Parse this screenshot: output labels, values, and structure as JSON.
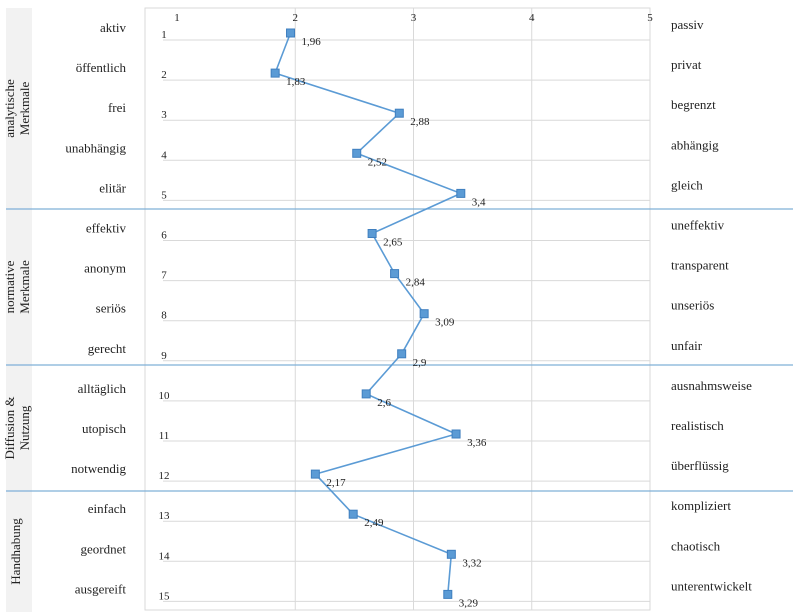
{
  "chart_data": {
    "type": "line",
    "orientation": "profile",
    "x_axis": {
      "min": 1,
      "max": 5,
      "ticks": [
        1,
        2,
        3,
        4,
        5
      ]
    },
    "y_axis": {
      "min": 1,
      "max": 15,
      "ticks": [
        1,
        2,
        3,
        4,
        5,
        6,
        7,
        8,
        9,
        10,
        11,
        12,
        13,
        14,
        15
      ]
    },
    "items": [
      {
        "index": 1,
        "left": "aktiv",
        "right": "passiv",
        "value": 1.96,
        "label": "1,96"
      },
      {
        "index": 2,
        "left": "öffentlich",
        "right": "privat",
        "value": 1.83,
        "label": "1,83"
      },
      {
        "index": 3,
        "left": "frei",
        "right": "begrenzt",
        "value": 2.88,
        "label": "2,88"
      },
      {
        "index": 4,
        "left": "unabhängig",
        "right": "abhängig",
        "value": 2.52,
        "label": "2,52"
      },
      {
        "index": 5,
        "left": "elitär",
        "right": "gleich",
        "value": 3.4,
        "label": "3,4"
      },
      {
        "index": 6,
        "left": "effektiv",
        "right": "uneffektiv",
        "value": 2.65,
        "label": "2,65"
      },
      {
        "index": 7,
        "left": "anonym",
        "right": "transparent",
        "value": 2.84,
        "label": "2,84"
      },
      {
        "index": 8,
        "left": "seriös",
        "right": "unseriös",
        "value": 3.09,
        "label": "3,09"
      },
      {
        "index": 9,
        "left": "gerecht",
        "right": "unfair",
        "value": 2.9,
        "label": "2,9"
      },
      {
        "index": 10,
        "left": "alltäglich",
        "right": "ausnahmsweise",
        "value": 2.6,
        "label": "2,6"
      },
      {
        "index": 11,
        "left": "utopisch",
        "right": "realistisch",
        "value": 3.36,
        "label": "3,36"
      },
      {
        "index": 12,
        "left": "notwendig",
        "right": "überflüssig",
        "value": 2.17,
        "label": "2,17"
      },
      {
        "index": 13,
        "left": "einfach",
        "right": "kompliziert",
        "value": 2.49,
        "label": "2,49"
      },
      {
        "index": 14,
        "left": "geordnet",
        "right": "chaotisch",
        "value": 3.32,
        "label": "3,32"
      },
      {
        "index": 15,
        "left": "ausgereift",
        "right": "unterentwickelt",
        "value": 3.29,
        "label": "3,29"
      }
    ],
    "groups": [
      {
        "label_lines": [
          "analytische",
          "Merkmale"
        ],
        "from": 1,
        "to": 5
      },
      {
        "label_lines": [
          "normative",
          "Merkmale"
        ],
        "from": 6,
        "to": 9
      },
      {
        "label_lines": [
          "Diffusion &",
          "Nutzung"
        ],
        "from": 10,
        "to": 12
      },
      {
        "label_lines": [
          "Handhabung"
        ],
        "from": 13,
        "to": 15
      }
    ],
    "grid": true,
    "legend": "none",
    "colors": {
      "series": "#5b9bd5",
      "marker": "#5b9bd5",
      "marker_stroke": "#3f7fbf",
      "grid": "#d9d9d9",
      "separator": "#7fb0d8",
      "group_band": "#f2f2f2"
    }
  }
}
